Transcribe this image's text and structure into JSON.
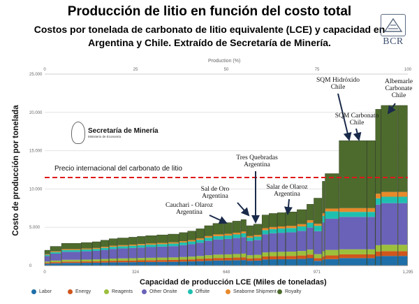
{
  "header": {
    "title": "Producción de litio en función del costo total",
    "subtitle": "Costos por tonelada de carbonato de litio equivalente (LCE) y capacidad en Argentina y Chile. Extraído de Secretaría de Minería.",
    "logo_text": "BCR"
  },
  "ministry": {
    "name": "Secretaría de Minería",
    "sub": "Ministerio de Economía"
  },
  "annotations": {
    "price_line": "Precio internacional del carbonato de litio",
    "cauchari": "Cauchari - Olaroz Argentina",
    "sal_de_oro": "Sal de Oro Argentina",
    "tres_quebradas": "Tres Quebradas Argentina",
    "salar_olaroz": "Salar de Olaroz Argentina",
    "sqm_hidroxido": "SQM Hidróxido Chile",
    "sqm_carbonato": "SQM Carbonato Chile",
    "albemarle": "Albemarle Carbonate Chile"
  },
  "chart_data": {
    "type": "bar",
    "title": "Producción de litio en función del costo total",
    "xlabel": "Capacidad de producción LCE (Miles de toneladas)",
    "ylabel": "Costo de producción por tonelada",
    "x2label": "Production (%)",
    "xlim": [
      0,
      1295
    ],
    "ylim": [
      0,
      25000
    ],
    "xticks": [
      "0",
      "324",
      "648",
      "971",
      "1,295"
    ],
    "x2ticks": [
      "0",
      "25",
      "50",
      "75",
      "100"
    ],
    "yticks": [
      "0",
      "5.000",
      "10.000",
      "15.000",
      "20.000",
      "25.000"
    ],
    "price_line": 11500,
    "legend": [
      {
        "name": "Labor",
        "color": "#1f6fa8"
      },
      {
        "name": "Energy",
        "color": "#d0561c"
      },
      {
        "name": "Reagents",
        "color": "#9cbf3c"
      },
      {
        "name": "Other Onsite",
        "color": "#6a62b8"
      },
      {
        "name": "Offsite",
        "color": "#1fbfb0"
      },
      {
        "name": "Seaborne Shipment",
        "color": "#e8892a"
      },
      {
        "name": "Royalty",
        "color": "#4e6b2e"
      }
    ],
    "bars": [
      {
        "x0": 0,
        "x1": 20,
        "total": 2000
      },
      {
        "x0": 20,
        "x1": 60,
        "total": 2500
      },
      {
        "x0": 60,
        "x1": 130,
        "total": 2900
      },
      {
        "x0": 130,
        "x1": 170,
        "total": 3000
      },
      {
        "x0": 170,
        "x1": 200,
        "total": 3100
      },
      {
        "x0": 200,
        "x1": 230,
        "total": 3300
      },
      {
        "x0": 230,
        "x1": 260,
        "total": 3500
      },
      {
        "x0": 260,
        "x1": 300,
        "total": 3600
      },
      {
        "x0": 300,
        "x1": 330,
        "total": 3700
      },
      {
        "x0": 330,
        "x1": 360,
        "total": 3800
      },
      {
        "x0": 360,
        "x1": 400,
        "total": 3900
      },
      {
        "x0": 400,
        "x1": 440,
        "total": 4000
      },
      {
        "x0": 440,
        "x1": 480,
        "total": 4100
      },
      {
        "x0": 480,
        "x1": 510,
        "total": 4300
      },
      {
        "x0": 510,
        "x1": 540,
        "total": 4500
      },
      {
        "x0": 540,
        "x1": 570,
        "total": 4800
      },
      {
        "x0": 570,
        "x1": 600,
        "total": 5200
      },
      {
        "x0": 600,
        "x1": 640,
        "total": 5500
      },
      {
        "x0": 640,
        "x1": 670,
        "total": 5600
      },
      {
        "x0": 670,
        "x1": 700,
        "total": 5800
      },
      {
        "x0": 700,
        "x1": 720,
        "total": 6000
      },
      {
        "x0": 720,
        "x1": 745,
        "total": 5200
      },
      {
        "x0": 745,
        "x1": 775,
        "total": 5400
      },
      {
        "x0": 775,
        "x1": 800,
        "total": 6600
      },
      {
        "x0": 800,
        "x1": 830,
        "total": 6800
      },
      {
        "x0": 830,
        "x1": 860,
        "total": 6900
      },
      {
        "x0": 860,
        "x1": 900,
        "total": 7000
      },
      {
        "x0": 900,
        "x1": 935,
        "total": 7300
      },
      {
        "x0": 935,
        "x1": 960,
        "total": 8000
      },
      {
        "x0": 960,
        "x1": 990,
        "total": 8800
      },
      {
        "x0": 990,
        "x1": 1000,
        "total": 11000
      },
      {
        "x0": 1000,
        "x1": 1050,
        "total": 12000
      },
      {
        "x0": 1050,
        "x1": 1150,
        "total": 16300
      },
      {
        "x0": 1150,
        "x1": 1180,
        "total": 16300
      },
      {
        "x0": 1180,
        "x1": 1200,
        "total": 20400
      },
      {
        "x0": 1200,
        "x1": 1260,
        "total": 20900
      },
      {
        "x0": 1260,
        "x1": 1295,
        "total": 20900
      }
    ]
  }
}
